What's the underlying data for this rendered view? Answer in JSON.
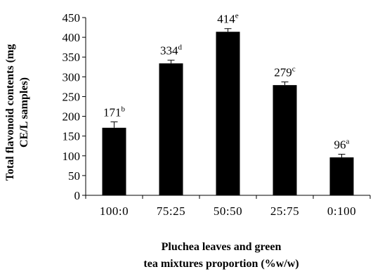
{
  "chart_data": {
    "type": "bar",
    "categories": [
      "100:0",
      "75:25",
      "50:50",
      "25:75",
      "0:100"
    ],
    "values": [
      171,
      334,
      414,
      279,
      96
    ],
    "errors": [
      15,
      8,
      8,
      8,
      8
    ],
    "data_labels": [
      {
        "value": "171",
        "letter": "b"
      },
      {
        "value": "334",
        "letter": "d"
      },
      {
        "value": "414",
        "letter": "e"
      },
      {
        "value": "279",
        "letter": "c"
      },
      {
        "value": "96",
        "letter": "a"
      }
    ],
    "ylabel_line1": "Total flavonoid contents (mg",
    "ylabel_line2": "CE/L samples)",
    "xlabel_line1": "Pluchea leaves and green",
    "xlabel_line2": "tea mixtures proportion (%w/w)",
    "ylim": [
      0,
      450
    ],
    "yticks": [
      0,
      50,
      100,
      150,
      200,
      250,
      300,
      350,
      400,
      450
    ],
    "grid": false,
    "bar_color": "#000000"
  }
}
